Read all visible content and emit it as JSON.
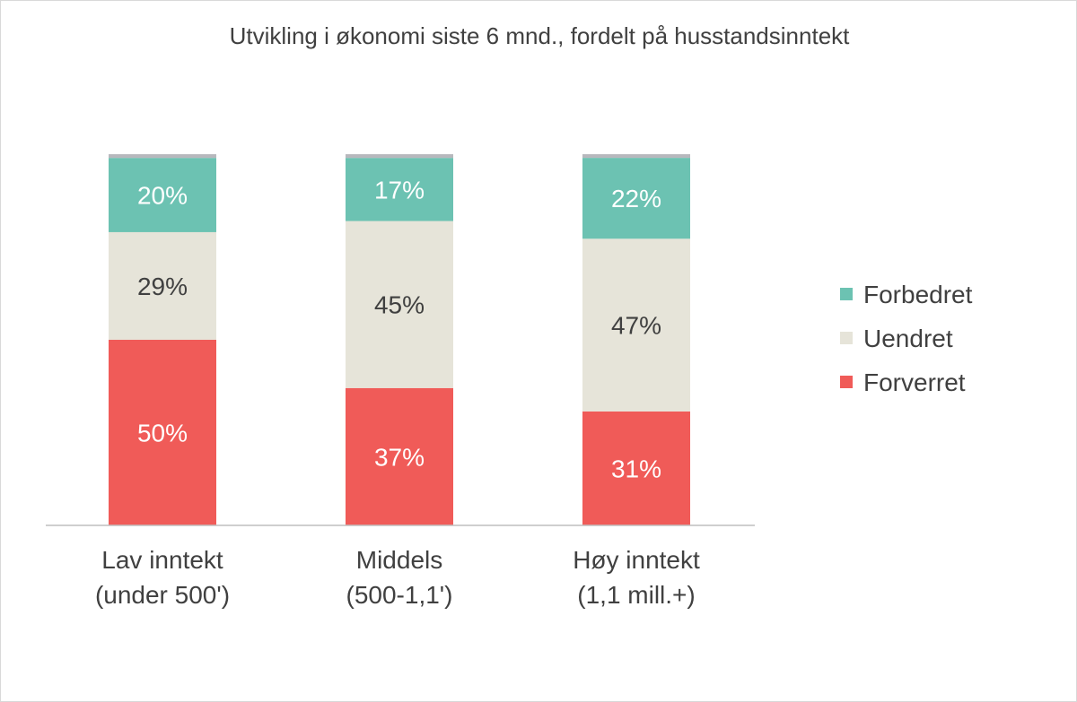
{
  "chart_data": {
    "type": "bar",
    "stacked": true,
    "percent_stacked": true,
    "title": "Utvikling i økonomi siste 6 mnd., fordelt på husstandsinntekt",
    "categories": [
      [
        "Lav inntekt",
        "(under 500')"
      ],
      [
        "Middels",
        "(500-1,1')"
      ],
      [
        "Høy inntekt",
        "(1,1 mill.+)"
      ]
    ],
    "series": [
      {
        "name": "Forverret",
        "values": [
          50,
          37,
          31
        ],
        "labels": [
          "50%",
          "37%",
          "31%"
        ],
        "color": "#f05b58",
        "label_color": "#ffffff"
      },
      {
        "name": "Uendret",
        "values": [
          29,
          45,
          47
        ],
        "labels": [
          "29%",
          "45%",
          "47%"
        ],
        "color": "#e6e4d9",
        "label_color": "#404040"
      },
      {
        "name": "Forbedret",
        "values": [
          20,
          17,
          22
        ],
        "labels": [
          "20%",
          "17%",
          "22%"
        ],
        "color": "#6cc2b2",
        "label_color": "#ffffff"
      },
      {
        "values": [
          1,
          1,
          1
        ],
        "color": "#b7b8bd"
      }
    ],
    "legend_order": [
      "Forbedret",
      "Uendret",
      "Forverret"
    ],
    "legend_position": "right",
    "ylim": [
      0,
      100
    ],
    "grid": false,
    "axis_color": "#bfbfbf"
  }
}
